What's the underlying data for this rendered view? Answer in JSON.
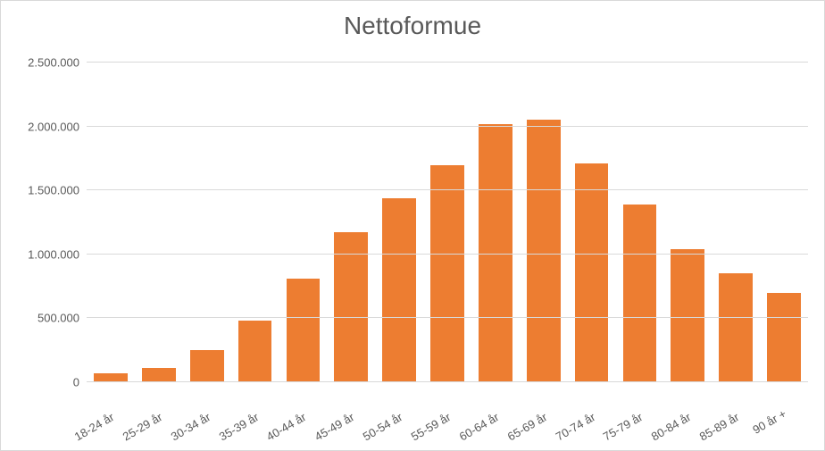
{
  "chart": {
    "type": "bar",
    "title": "Nettoformue",
    "title_fontsize": 28,
    "title_color": "#595959",
    "background_color": "#ffffff",
    "border_color": "#d9d9d9",
    "grid_color": "#d9d9d9",
    "axis_label_color": "#595959",
    "axis_label_fontsize": 13,
    "bar_color": "#ed7d31",
    "bar_width": 0.7,
    "x_label_rotation_deg": -30,
    "y_axis": {
      "min": 0,
      "max": 2500000,
      "tick_step": 500000,
      "tick_labels": [
        "0",
        "500.000",
        "1.000.000",
        "1.500.000",
        "2.000.000",
        "2.500.000"
      ]
    },
    "categories": [
      "18-24 år",
      "25-29 år",
      "30-34 år",
      "35-39 år",
      "40-44 år",
      "45-49 år",
      "50-54 år",
      "55-59 år",
      "60-64 år",
      "65-69 år",
      "70-74 år",
      "75-79 år",
      "80-84 år",
      "85-89 år",
      "90 år +"
    ],
    "values": [
      70000,
      110000,
      250000,
      480000,
      810000,
      1170000,
      1440000,
      1700000,
      2020000,
      2050000,
      1710000,
      1390000,
      1040000,
      850000,
      700000
    ]
  }
}
